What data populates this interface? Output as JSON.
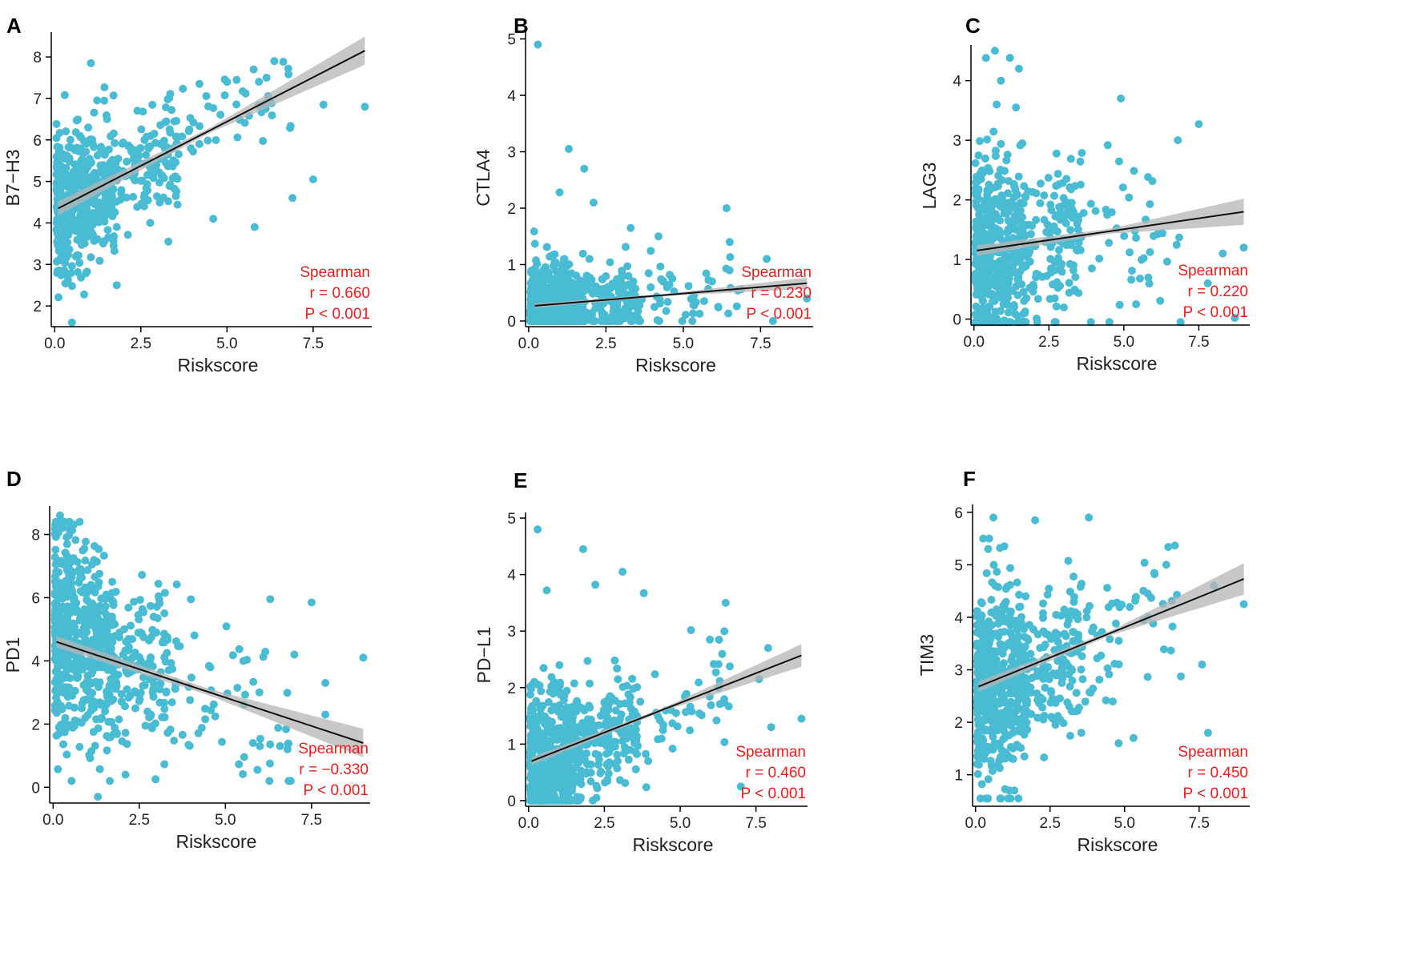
{
  "colors": {
    "points": "#49bcd3",
    "fit_line": "#111111",
    "ci_band": "#b5b5b5",
    "stats": "#ee1c1c",
    "axis": "#000000"
  },
  "chart_data": [
    {
      "panel": "A",
      "type": "scatter",
      "xlabel": "Riskscore",
      "ylabel": "B7−H3",
      "xlim": [
        -0.1,
        9.2
      ],
      "ylim": [
        1.5,
        8.6
      ],
      "xticks": [
        0.0,
        2.5,
        5.0,
        7.5
      ],
      "xtick_labels": [
        "0.0",
        "2.5",
        "5.0",
        "7.5"
      ],
      "yticks": [
        2,
        3,
        4,
        5,
        6,
        7,
        8
      ],
      "ytick_labels": [
        "2",
        "3",
        "4",
        "5",
        "6",
        "7",
        "8"
      ],
      "fit": {
        "x": [
          0.1,
          9.0
        ],
        "y": [
          4.35,
          8.15
        ],
        "ci": [
          [
            0.1,
            0.17
          ],
          [
            4.5,
            0.06
          ],
          [
            9.0,
            0.34
          ]
        ]
      },
      "stats": {
        "method": "Spearman",
        "r": "r = 0.660",
        "p": "P < 0.001"
      },
      "n_points": 650,
      "seed": 11,
      "x_mean": 1.4,
      "x_tail": 1.05,
      "y_slope": 0.43,
      "y_intercept": 4.3,
      "y_noise": 0.8,
      "y_clip": [
        1.6,
        7.9
      ],
      "outliers": [
        [
          1.05,
          7.85
        ],
        [
          9.0,
          6.8
        ],
        [
          7.8,
          6.85
        ],
        [
          7.5,
          5.05
        ],
        [
          5.8,
          3.9
        ],
        [
          4.6,
          4.1
        ],
        [
          3.3,
          3.55
        ],
        [
          1.8,
          2.5
        ],
        [
          0.5,
          1.6
        ],
        [
          6.9,
          4.6
        ],
        [
          5.0,
          7.4
        ],
        [
          4.2,
          7.35
        ]
      ]
    },
    {
      "panel": "B",
      "type": "scatter",
      "xlabel": "Riskscore",
      "ylabel": "CTLA4",
      "xlim": [
        -0.1,
        9.2
      ],
      "ylim": [
        -0.1,
        5.15
      ],
      "xticks": [
        0.0,
        2.5,
        5.0,
        7.5
      ],
      "xtick_labels": [
        "0.0",
        "2.5",
        "5.0",
        "7.5"
      ],
      "yticks": [
        0,
        1,
        2,
        3,
        4,
        5
      ],
      "ytick_labels": [
        "0",
        "1",
        "2",
        "3",
        "4",
        "5"
      ],
      "fit": {
        "x": [
          0.2,
          9.0
        ],
        "y": [
          0.27,
          0.67
        ],
        "ci": [
          [
            0.2,
            0.04
          ],
          [
            4.5,
            0.02
          ],
          [
            9.0,
            0.1
          ]
        ]
      },
      "stats": {
        "method": "Spearman",
        "r": "r = 0.230",
        "p": "P < 0.001"
      },
      "n_points": 650,
      "seed": 22,
      "x_mean": 1.6,
      "x_tail": 1.1,
      "y_slope": 0.05,
      "y_intercept": 0.2,
      "y_noise": 0.4,
      "y_clip": [
        0,
        2.4
      ],
      "outliers": [
        [
          0.3,
          4.9
        ],
        [
          1.3,
          3.05
        ],
        [
          1.8,
          2.7
        ],
        [
          1.0,
          2.28
        ],
        [
          2.1,
          2.1
        ],
        [
          6.4,
          2.0
        ],
        [
          6.5,
          1.4
        ],
        [
          7.7,
          1.1
        ],
        [
          4.2,
          1.5
        ],
        [
          9.0,
          0.4
        ],
        [
          7.9,
          0.0
        ],
        [
          3.3,
          1.65
        ]
      ]
    },
    {
      "panel": "C",
      "type": "scatter",
      "xlabel": "Riskscore",
      "ylabel": "LAG3",
      "xlim": [
        -0.1,
        9.2
      ],
      "ylim": [
        -0.1,
        4.6
      ],
      "xticks": [
        0.0,
        2.5,
        5.0,
        7.5
      ],
      "xtick_labels": [
        "0.0",
        "2.5",
        "5.0",
        "7.5"
      ],
      "yticks": [
        0,
        1,
        2,
        3,
        4
      ],
      "ytick_labels": [
        "0",
        "1",
        "2",
        "3",
        "4"
      ],
      "fit": {
        "x": [
          0.1,
          9.0
        ],
        "y": [
          1.15,
          1.8
        ],
        "ci": [
          [
            0.1,
            0.09
          ],
          [
            4.5,
            0.04
          ],
          [
            9.0,
            0.22
          ]
        ]
      },
      "stats": {
        "method": "Spearman",
        "r": "r = 0.220",
        "p": "P < 0.001"
      },
      "n_points": 650,
      "seed": 33,
      "x_mean": 1.5,
      "x_tail": 1.1,
      "y_slope": 0.07,
      "y_intercept": 1.05,
      "y_noise": 0.8,
      "y_clip": [
        -0.05,
        3.6
      ],
      "outliers": [
        [
          0.7,
          4.5
        ],
        [
          0.4,
          4.38
        ],
        [
          1.2,
          4.38
        ],
        [
          1.5,
          4.2
        ],
        [
          0.9,
          4.0
        ],
        [
          1.4,
          3.55
        ],
        [
          4.9,
          3.7
        ],
        [
          7.5,
          3.27
        ],
        [
          6.8,
          3.0
        ],
        [
          9.0,
          1.2
        ],
        [
          8.7,
          0.02
        ],
        [
          7.8,
          0.6
        ],
        [
          8.3,
          1.1
        ]
      ]
    },
    {
      "panel": "D",
      "type": "scatter",
      "xlabel": "Riskscore",
      "ylabel": "PD1",
      "xlim": [
        -0.1,
        9.2
      ],
      "ylim": [
        -0.5,
        8.9
      ],
      "xticks": [
        0.0,
        2.5,
        5.0,
        7.5
      ],
      "xtick_labels": [
        "0.0",
        "2.5",
        "5.0",
        "7.5"
      ],
      "yticks": [
        0,
        2,
        4,
        6,
        8
      ],
      "ytick_labels": [
        "0",
        "2",
        "4",
        "6",
        "8"
      ],
      "fit": {
        "x": [
          0.1,
          9.0
        ],
        "y": [
          4.6,
          1.4
        ],
        "ci": [
          [
            0.1,
            0.18
          ],
          [
            4.5,
            0.1
          ],
          [
            9.0,
            0.45
          ]
        ]
      },
      "stats": {
        "method": "Spearman",
        "r": "r = −0.330",
        "p": "P < 0.001"
      },
      "n_points": 720,
      "seed": 44,
      "x_mean": 1.2,
      "x_tail": 1.0,
      "y_slope": -0.45,
      "y_intercept": 4.9,
      "y_noise": 1.55,
      "y_clip": [
        0.2,
        8.4
      ],
      "outliers": [
        [
          0.2,
          8.6
        ],
        [
          1.3,
          -0.3
        ],
        [
          6.3,
          5.95
        ],
        [
          7.5,
          5.85
        ],
        [
          9.0,
          4.1
        ],
        [
          7.0,
          4.2
        ],
        [
          7.9,
          3.3
        ],
        [
          7.9,
          2.3
        ],
        [
          5.8,
          1.4
        ],
        [
          2.1,
          0.4
        ],
        [
          6.0,
          1.3
        ]
      ]
    },
    {
      "panel": "E",
      "type": "scatter",
      "xlabel": "Riskscore",
      "ylabel": "PD−L1",
      "xlim": [
        -0.1,
        9.2
      ],
      "ylim": [
        -0.1,
        5.1
      ],
      "xticks": [
        0.0,
        2.5,
        5.0,
        7.5
      ],
      "xtick_labels": [
        "0.0",
        "2.5",
        "5.0",
        "7.5"
      ],
      "yticks": [
        0,
        1,
        2,
        3,
        4,
        5
      ],
      "ytick_labels": [
        "0",
        "1",
        "2",
        "3",
        "4",
        "5"
      ],
      "fit": {
        "x": [
          0.1,
          9.0
        ],
        "y": [
          0.7,
          2.57
        ],
        "ci": [
          [
            0.1,
            0.07
          ],
          [
            4.5,
            0.03
          ],
          [
            9.0,
            0.2
          ]
        ]
      },
      "stats": {
        "method": "Spearman",
        "r": "r = 0.460",
        "p": "P < 0.001"
      },
      "n_points": 700,
      "seed": 55,
      "x_mean": 1.5,
      "x_tail": 1.1,
      "y_slope": 0.21,
      "y_intercept": 0.55,
      "y_noise": 0.6,
      "y_clip": [
        0,
        3.2
      ],
      "outliers": [
        [
          0.3,
          4.8
        ],
        [
          1.8,
          4.45
        ],
        [
          3.1,
          4.05
        ],
        [
          2.2,
          3.82
        ],
        [
          0.6,
          3.72
        ],
        [
          3.8,
          3.67
        ],
        [
          6.5,
          3.5
        ],
        [
          7.6,
          2.15
        ],
        [
          7.0,
          0.25
        ],
        [
          9.0,
          1.45
        ],
        [
          7.9,
          2.7
        ],
        [
          8.0,
          1.3
        ]
      ]
    },
    {
      "panel": "F",
      "type": "scatter",
      "xlabel": "Riskscore",
      "ylabel": "TIM3",
      "xlim": [
        -0.1,
        9.2
      ],
      "ylim": [
        0.4,
        6.15
      ],
      "xticks": [
        0.0,
        2.5,
        5.0,
        7.5
      ],
      "xtick_labels": [
        "0.0",
        "2.5",
        "5.0",
        "7.5"
      ],
      "yticks": [
        1,
        2,
        3,
        4,
        5,
        6
      ],
      "ytick_labels": [
        "1",
        "2",
        "3",
        "4",
        "5",
        "6"
      ],
      "fit": {
        "x": [
          0.1,
          9.0
        ],
        "y": [
          2.68,
          4.73
        ],
        "ci": [
          [
            0.1,
            0.1
          ],
          [
            4.5,
            0.04
          ],
          [
            9.0,
            0.3
          ]
        ]
      },
      "stats": {
        "method": "Spearman",
        "r": "r = 0.450",
        "p": "P < 0.001"
      },
      "n_points": 700,
      "seed": 66,
      "x_mean": 1.5,
      "x_tail": 1.1,
      "y_slope": 0.23,
      "y_intercept": 2.55,
      "y_noise": 0.85,
      "y_clip": [
        0.55,
        5.5
      ],
      "outliers": [
        [
          0.6,
          5.9
        ],
        [
          2.0,
          5.85
        ],
        [
          3.8,
          5.9
        ],
        [
          9.0,
          4.25
        ],
        [
          8.0,
          4.6
        ],
        [
          7.6,
          3.1
        ],
        [
          7.8,
          1.8
        ],
        [
          6.4,
          5.0
        ],
        [
          5.3,
          1.7
        ],
        [
          4.8,
          1.6
        ],
        [
          1.3,
          0.7
        ]
      ]
    }
  ]
}
